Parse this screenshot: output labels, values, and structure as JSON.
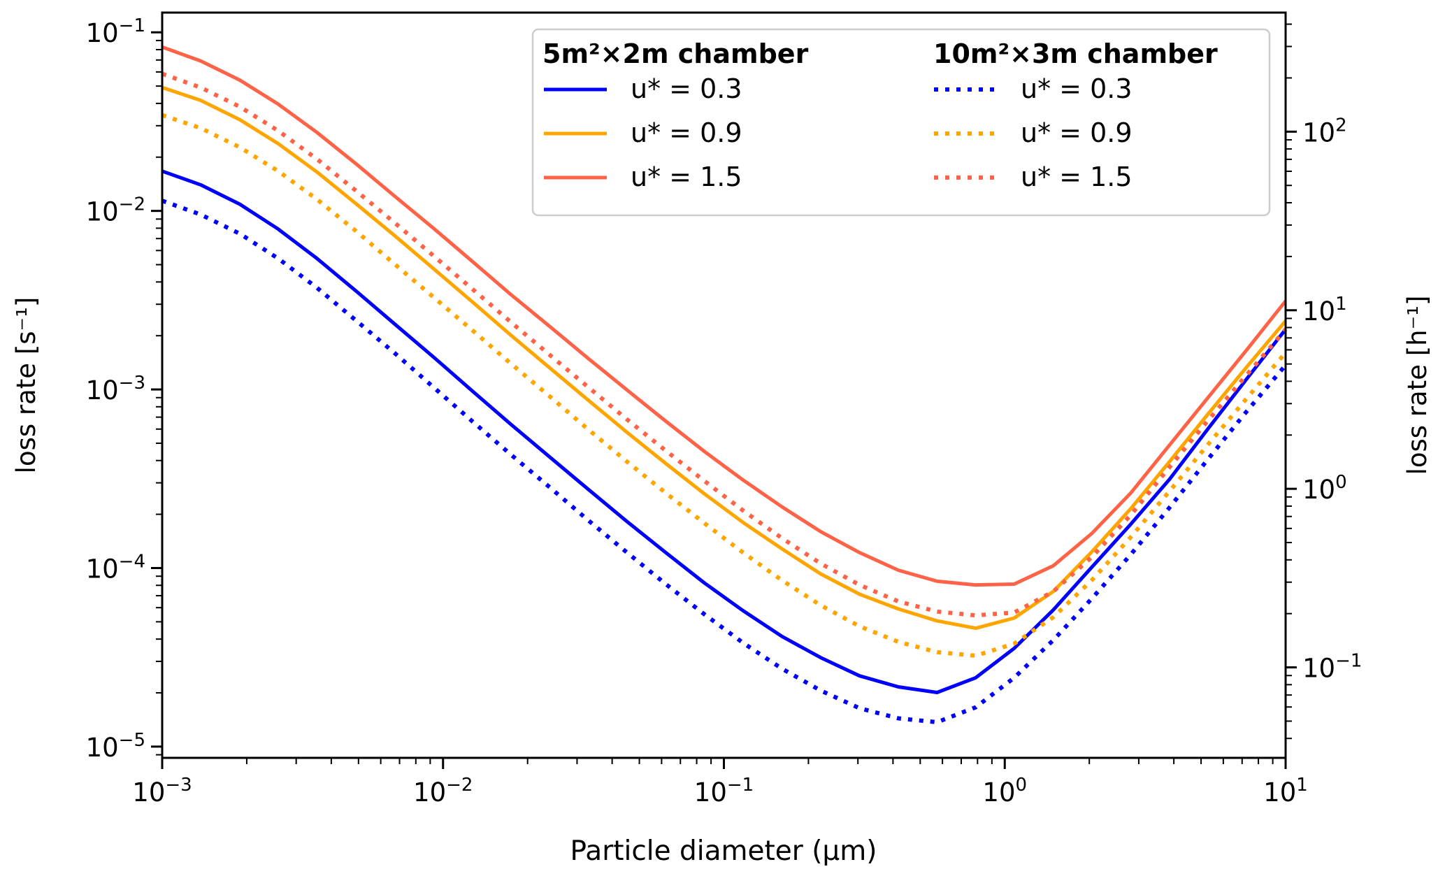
{
  "chart_data": {
    "type": "line",
    "title": "",
    "xlabel": "Particle diameter (μm)",
    "ylabel": "loss rate [s⁻¹]",
    "ylabel_right": "loss rate [h⁻¹]",
    "xscale": "log",
    "yscale": "log",
    "xlim": [
      0.001,
      10
    ],
    "ylim": [
      8.65e-06,
      0.129
    ],
    "ylim_right": [
      0.0311,
      464
    ],
    "right_axis_factor": 3600,
    "grid": false,
    "legend_placement": "top-right",
    "x_ticks": [
      {
        "base": "10",
        "exp": "−3",
        "value": 0.001
      },
      {
        "base": "10",
        "exp": "−2",
        "value": 0.01
      },
      {
        "base": "10",
        "exp": "−1",
        "value": 0.1
      },
      {
        "base": "10",
        "exp": "0",
        "value": 1
      },
      {
        "base": "10",
        "exp": "1",
        "value": 10
      }
    ],
    "y_ticks": [
      {
        "base": "10",
        "exp": "−1",
        "value": 0.1
      },
      {
        "base": "10",
        "exp": "−2",
        "value": 0.01
      },
      {
        "base": "10",
        "exp": "−3",
        "value": 0.001
      },
      {
        "base": "10",
        "exp": "−4",
        "value": 0.0001
      },
      {
        "base": "10",
        "exp": "−5",
        "value": 1e-05
      }
    ],
    "y_ticks_right": [
      {
        "base": "10",
        "exp": "2",
        "value": 100
      },
      {
        "base": "10",
        "exp": "1",
        "value": 10
      },
      {
        "base": "10",
        "exp": "0",
        "value": 1
      },
      {
        "base": "10",
        "exp": "−1",
        "value": 0.1
      }
    ],
    "x": [
      0.001,
      0.00137,
      0.00189,
      0.00259,
      0.00356,
      0.00489,
      0.00672,
      0.00924,
      0.0127,
      0.0174,
      0.024,
      0.0329,
      0.0452,
      0.0621,
      0.0853,
      0.117,
      0.161,
      0.221,
      0.304,
      0.418,
      0.574,
      0.788,
      1.08,
      1.49,
      2.04,
      2.81,
      3.86,
      5.3,
      7.28,
      10.0
    ],
    "legend": {
      "groups": [
        {
          "title": "5m²×2m chamber",
          "style": "solid"
        },
        {
          "title": "10m²×3m chamber",
          "style": "dotted"
        }
      ]
    },
    "series": [
      {
        "name": "u* = 0.3",
        "chamber": "5m²×2m chamber",
        "style": "solid",
        "color": "#0000ff",
        "values": [
          0.0167,
          0.014,
          0.0109,
          0.00791,
          0.00541,
          0.00357,
          0.00233,
          0.00152,
          0.000982,
          0.00064,
          0.000418,
          0.000276,
          0.000182,
          0.000122,
          8.24e-05,
          5.77e-05,
          4.14e-05,
          3.15e-05,
          2.49e-05,
          2.16e-05,
          2.01e-05,
          2.43e-05,
          3.55e-05,
          5.83e-05,
          0.000101,
          0.000176,
          0.000314,
          0.000604,
          0.00115,
          0.00217
        ]
      },
      {
        "name": "u* = 0.9",
        "chamber": "5m²×2m chamber",
        "style": "solid",
        "color": "#ffa500",
        "values": [
          0.0491,
          0.0416,
          0.0324,
          0.0238,
          0.0165,
          0.011,
          0.00728,
          0.00475,
          0.0031,
          0.00202,
          0.00132,
          0.000871,
          0.000575,
          0.000385,
          0.00026,
          0.00018,
          0.000128,
          9.27e-05,
          7.14e-05,
          5.9e-05,
          5.06e-05,
          4.6e-05,
          5.25e-05,
          7.4e-05,
          0.000123,
          0.000215,
          0.000394,
          0.00073,
          0.00134,
          0.00242
        ]
      },
      {
        "name": "u* = 1.5",
        "chamber": "5m²×2m chamber",
        "style": "solid",
        "color": "#ff6347",
        "values": [
          0.0827,
          0.0692,
          0.054,
          0.0396,
          0.0275,
          0.0184,
          0.0121,
          0.008,
          0.00522,
          0.00341,
          0.00225,
          0.00149,
          0.000993,
          0.000664,
          0.000449,
          0.000311,
          0.00022,
          0.00016,
          0.000122,
          9.72e-05,
          8.43e-05,
          8.04e-05,
          8.13e-05,
          0.000103,
          0.000156,
          0.000263,
          0.000488,
          0.000903,
          0.00167,
          0.00313
        ]
      },
      {
        "name": "u* = 0.3",
        "chamber": "10m²×3m chamber",
        "style": "dotted",
        "color": "#0000ff",
        "values": [
          0.0114,
          0.00955,
          0.00745,
          0.00541,
          0.00371,
          0.00244,
          0.0016,
          0.00103,
          0.000664,
          0.000433,
          0.000283,
          0.000185,
          0.000122,
          8.13e-05,
          5.5e-05,
          3.81e-05,
          2.73e-05,
          2.06e-05,
          1.64e-05,
          1.44e-05,
          1.37e-05,
          1.66e-05,
          2.43e-05,
          3.95e-05,
          6.73e-05,
          0.000119,
          0.000218,
          0.000408,
          0.000756,
          0.00137
        ]
      },
      {
        "name": "u* = 0.9",
        "chamber": "10m²×3m chamber",
        "style": "dotted",
        "color": "#ffa500",
        "values": [
          0.0344,
          0.0291,
          0.0227,
          0.0167,
          0.0116,
          0.00773,
          0.00504,
          0.00329,
          0.00215,
          0.0014,
          0.000914,
          0.000597,
          0.000394,
          0.000263,
          0.000178,
          0.000122,
          8.53e-05,
          6.19e-05,
          4.72e-05,
          3.86e-05,
          3.38e-05,
          3.23e-05,
          3.77e-05,
          5.31e-05,
          8.53e-05,
          0.000149,
          0.000269,
          0.000493,
          0.000893,
          0.00161
        ]
      },
      {
        "name": "u* = 1.5",
        "chamber": "10m²×3m chamber",
        "style": "dotted",
        "color": "#ff6347",
        "values": [
          0.0586,
          0.0491,
          0.0383,
          0.0281,
          0.0195,
          0.013,
          0.00859,
          0.00561,
          0.00366,
          0.00239,
          0.00156,
          0.00103,
          0.000679,
          0.000454,
          0.000307,
          0.00021,
          0.000147,
          0.000106,
          8.04e-05,
          6.5e-05,
          5.7e-05,
          5.43e-05,
          5.63e-05,
          7.4e-05,
          0.000115,
          0.000198,
          0.000367,
          0.000672,
          0.00121,
          0.00217
        ]
      }
    ]
  }
}
